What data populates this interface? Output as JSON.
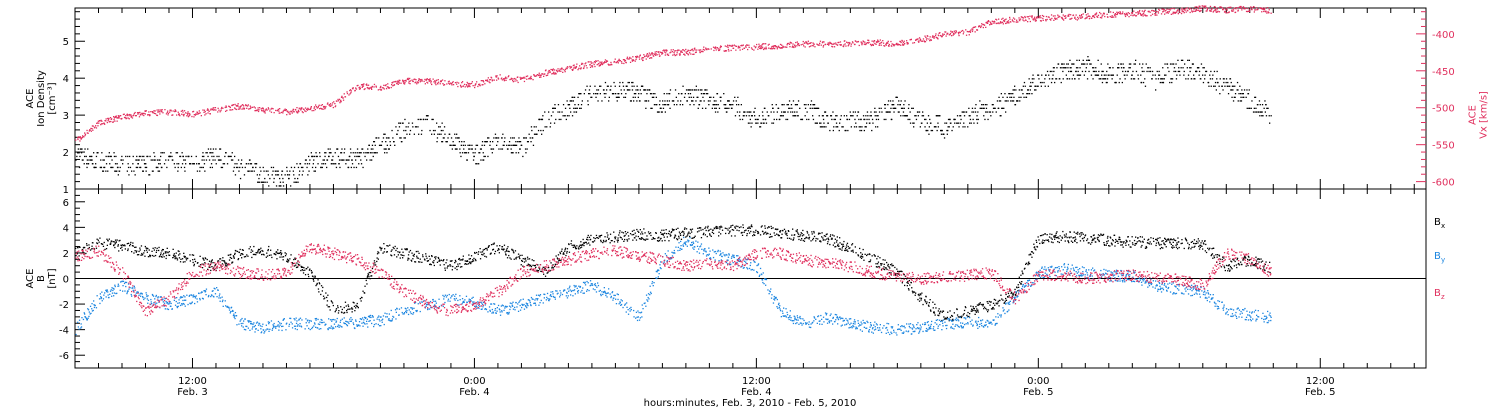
{
  "colors": {
    "black": "#000000",
    "pink": "#e0305e",
    "blue": "#1c86e0"
  },
  "x_axis": {
    "title": "hours:minutes, Feb. 3, 2010 - Feb. 5, 2010",
    "range_hours": [
      7.0,
      64.5
    ],
    "ticks": [
      {
        "t": 12,
        "top": "12:00",
        "bottom": "Feb. 3"
      },
      {
        "t": 24,
        "top": "0:00",
        "bottom": "Feb. 4"
      },
      {
        "t": 36,
        "top": "12:00",
        "bottom": "Feb. 4"
      },
      {
        "t": 48,
        "top": "0:00",
        "bottom": "Feb. 5"
      },
      {
        "t": 60,
        "top": "12:00",
        "bottom": "Feb. 5"
      }
    ]
  },
  "chart_data": [
    {
      "type": "scatter",
      "panel": "top",
      "left_axis": {
        "label_lines": [
          "ACE",
          "Ion Density",
          "[cm⁻³]"
        ],
        "ylim": [
          1,
          5.9
        ],
        "ticks": [
          1,
          2,
          3,
          4,
          5
        ]
      },
      "right_axis": {
        "label_lines": [
          "ACE",
          "Vx [km/s]"
        ],
        "ylim": [
          -610,
          -365
        ],
        "ticks": [
          -600,
          -550,
          -500,
          -450,
          -400
        ]
      },
      "grid": false,
      "series": [
        {
          "name": "",
          "axis": "left",
          "color": "black",
          "x_hours": [
            7.0,
            8.0,
            9.0,
            10.0,
            11.0,
            12.0,
            13.0,
            14.0,
            15.0,
            16.0,
            17.0,
            18.0,
            19.0,
            20.0,
            21.0,
            22.0,
            23.0,
            24.0,
            25.0,
            26.0,
            27.0,
            28.0,
            29.0,
            30.0,
            31.0,
            32.0,
            33.0,
            34.0,
            35.0,
            36.0,
            37.0,
            38.0,
            39.0,
            40.0,
            41.0,
            42.0,
            43.0,
            44.0,
            45.0,
            46.0,
            47.0,
            48.0,
            49.0,
            50.0,
            51.0,
            52.0,
            53.0,
            54.0,
            55.0,
            56.0,
            57.0,
            57.9
          ],
          "values": [
            1.9,
            1.8,
            1.6,
            1.7,
            1.8,
            1.7,
            1.9,
            1.6,
            1.4,
            1.3,
            1.7,
            1.9,
            1.8,
            2.2,
            2.6,
            2.8,
            2.3,
            1.9,
            2.3,
            2.1,
            2.9,
            3.2,
            3.6,
            3.7,
            3.6,
            3.3,
            3.6,
            3.4,
            3.3,
            2.9,
            3.1,
            3.2,
            2.9,
            2.8,
            2.9,
            3.3,
            2.8,
            2.7,
            3.0,
            3.2,
            3.5,
            4.0,
            4.2,
            4.3,
            4.1,
            4.2,
            4.0,
            4.3,
            4.1,
            3.8,
            3.4,
            3.0
          ]
        },
        {
          "name": "",
          "axis": "right",
          "color": "pink",
          "x_hours": [
            7.0,
            8.0,
            9.0,
            10.0,
            11.0,
            12.0,
            13.0,
            14.0,
            15.0,
            16.0,
            17.0,
            18.0,
            19.0,
            20.0,
            21.0,
            22.0,
            23.0,
            24.0,
            25.0,
            26.0,
            27.0,
            28.0,
            29.0,
            30.0,
            31.0,
            32.0,
            33.0,
            34.0,
            35.0,
            36.0,
            37.0,
            38.0,
            39.0,
            40.0,
            41.0,
            42.0,
            43.0,
            44.0,
            45.0,
            46.0,
            47.0,
            48.0,
            49.0,
            50.0,
            51.0,
            52.0,
            53.0,
            54.0,
            55.0,
            56.0,
            57.0,
            57.9
          ],
          "values": [
            -545,
            -520,
            -512,
            -507,
            -505,
            -508,
            -502,
            -497,
            -502,
            -505,
            -500,
            -495,
            -470,
            -472,
            -463,
            -463,
            -467,
            -468,
            -458,
            -462,
            -452,
            -446,
            -440,
            -437,
            -432,
            -425,
            -424,
            -420,
            -418,
            -417,
            -415,
            -413,
            -413,
            -412,
            -411,
            -413,
            -407,
            -400,
            -397,
            -383,
            -380,
            -378,
            -377,
            -376,
            -373,
            -372,
            -370,
            -368,
            -365,
            -367,
            -365,
            -368
          ]
        }
      ]
    },
    {
      "type": "scatter",
      "panel": "bottom",
      "left_axis": {
        "label_lines": [
          "ACE",
          "B",
          "[nT]"
        ],
        "ylim": [
          -7,
          7
        ],
        "ticks": [
          -6,
          -4,
          -2,
          0,
          2,
          4,
          6
        ]
      },
      "zero_line": true,
      "grid": false,
      "legend_placement": "right",
      "series": [
        {
          "name": "Bx",
          "color": "black",
          "x_hours": [
            7.0,
            8.0,
            9.0,
            10.0,
            11.0,
            12.0,
            13.0,
            14.0,
            15.0,
            16.0,
            17.0,
            18.0,
            19.0,
            20.0,
            21.0,
            22.0,
            23.0,
            24.0,
            25.0,
            26.0,
            27.0,
            28.0,
            29.0,
            30.0,
            31.0,
            32.0,
            33.0,
            34.0,
            35.0,
            36.0,
            37.0,
            38.0,
            39.0,
            40.0,
            41.0,
            42.0,
            43.0,
            44.0,
            45.0,
            46.0,
            47.0,
            48.0,
            49.0,
            50.0,
            51.0,
            52.0,
            53.0,
            54.0,
            55.0,
            56.0,
            57.0,
            57.9
          ],
          "values": [
            2.0,
            2.8,
            2.6,
            2.2,
            2.0,
            1.5,
            1.0,
            2.0,
            2.2,
            1.8,
            0.5,
            -2.5,
            -2.0,
            2.5,
            2.0,
            1.5,
            1.0,
            1.8,
            2.5,
            1.5,
            0.5,
            2.5,
            3.2,
            3.3,
            3.5,
            3.4,
            3.6,
            3.7,
            3.8,
            3.8,
            3.6,
            3.4,
            3.2,
            2.4,
            1.5,
            0.5,
            -1.5,
            -3.0,
            -2.5,
            -2.0,
            -1.0,
            3.2,
            3.3,
            3.2,
            3.0,
            2.9,
            2.8,
            2.8,
            2.7,
            1.0,
            1.5,
            0.8
          ]
        },
        {
          "name": "By",
          "color": "blue",
          "x_hours": [
            7.0,
            8.0,
            9.0,
            10.0,
            11.0,
            12.0,
            13.0,
            14.0,
            15.0,
            16.0,
            17.0,
            18.0,
            19.0,
            20.0,
            21.0,
            22.0,
            23.0,
            24.0,
            25.0,
            26.0,
            27.0,
            28.0,
            29.0,
            30.0,
            31.0,
            32.0,
            33.0,
            34.0,
            35.0,
            36.0,
            37.0,
            38.0,
            39.0,
            40.0,
            41.0,
            42.0,
            43.0,
            44.0,
            45.0,
            46.0,
            47.0,
            48.0,
            49.0,
            50.0,
            51.0,
            52.0,
            53.0,
            54.0,
            55.0,
            56.0,
            57.0,
            57.9
          ],
          "values": [
            -4.0,
            -1.5,
            -0.5,
            -1.5,
            -2.0,
            -1.5,
            -1.0,
            -3.5,
            -3.8,
            -3.5,
            -3.5,
            -3.5,
            -3.4,
            -3.2,
            -2.5,
            -2.0,
            -1.5,
            -1.8,
            -2.5,
            -2.0,
            -1.5,
            -1.0,
            -0.5,
            -1.5,
            -3.0,
            1.5,
            3.0,
            2.0,
            1.5,
            1.0,
            -2.5,
            -3.5,
            -3.0,
            -3.5,
            -3.8,
            -4.0,
            -3.8,
            -3.5,
            -3.4,
            -3.5,
            -1.5,
            0.5,
            0.8,
            0.5,
            0.3,
            0.2,
            -0.5,
            -0.8,
            -1.0,
            -2.5,
            -2.8,
            -3.0
          ]
        },
        {
          "name": "Bz",
          "color": "pink",
          "x_hours": [
            7.0,
            8.0,
            9.0,
            10.0,
            11.0,
            12.0,
            13.0,
            14.0,
            15.0,
            16.0,
            17.0,
            18.0,
            19.0,
            20.0,
            21.0,
            22.0,
            23.0,
            24.0,
            25.0,
            26.0,
            27.0,
            28.0,
            29.0,
            30.0,
            31.0,
            32.0,
            33.0,
            34.0,
            35.0,
            36.0,
            37.0,
            38.0,
            39.0,
            40.0,
            41.0,
            42.0,
            43.0,
            44.0,
            45.0,
            46.0,
            47.0,
            48.0,
            49.0,
            50.0,
            51.0,
            52.0,
            53.0,
            54.0,
            55.0,
            56.0,
            57.0,
            57.9
          ],
          "values": [
            1.8,
            2.2,
            0.5,
            -2.5,
            -1.5,
            0.5,
            1.0,
            0.5,
            0.3,
            0.5,
            2.5,
            2.0,
            1.5,
            0.5,
            -1.0,
            -2.0,
            -2.5,
            -2.0,
            -1.0,
            0.5,
            1.0,
            1.5,
            2.0,
            2.2,
            1.8,
            1.5,
            1.0,
            1.2,
            1.0,
            2.0,
            2.0,
            1.5,
            1.2,
            1.0,
            0.5,
            0.2,
            0.0,
            0.2,
            0.3,
            0.5,
            -1.5,
            0.3,
            0.3,
            0.0,
            0.2,
            0.3,
            0.1,
            0.0,
            -0.5,
            2.0,
            1.5,
            0.5
          ]
        }
      ]
    }
  ]
}
